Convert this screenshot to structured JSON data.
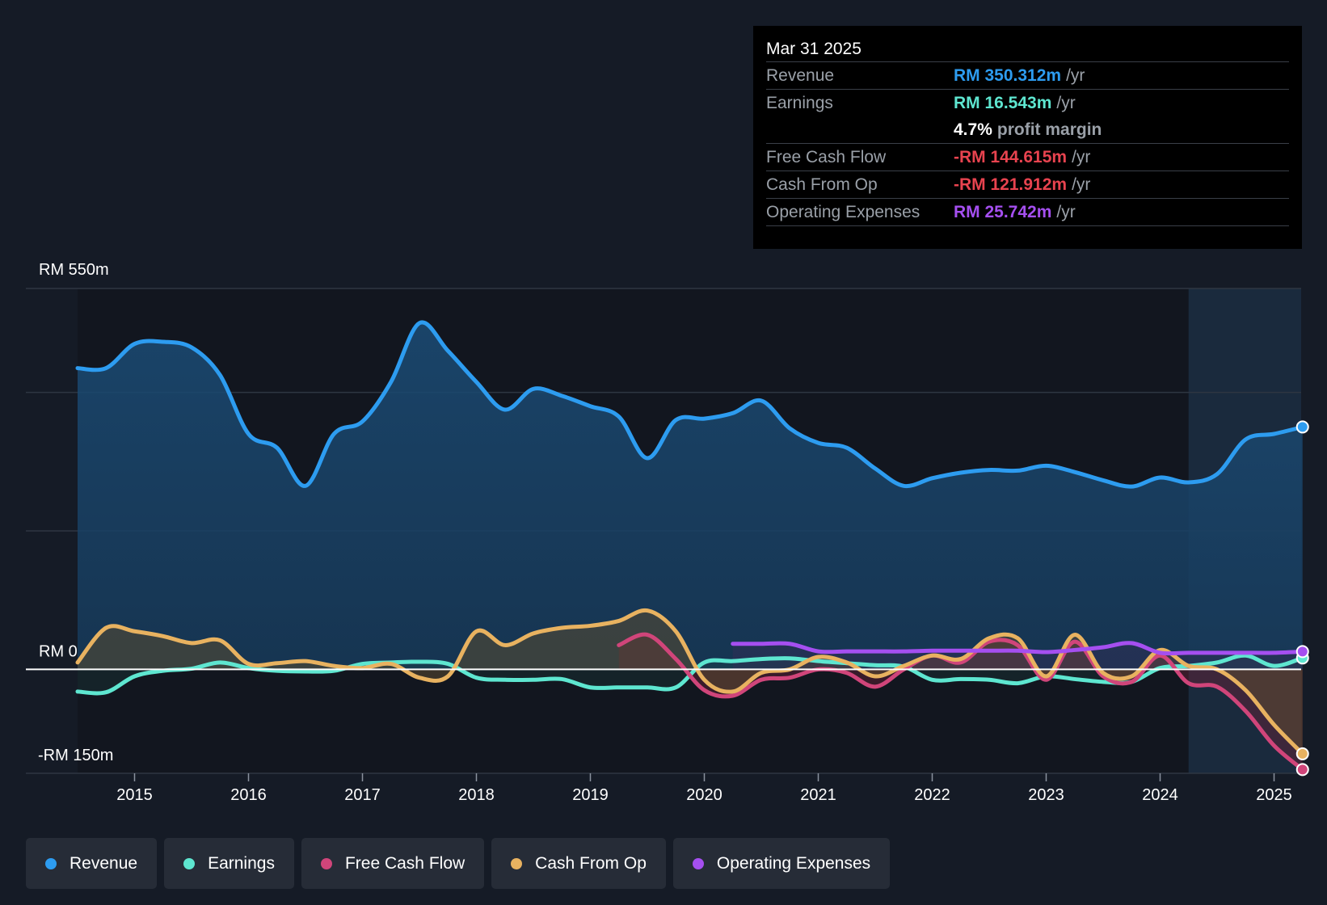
{
  "tooltip": {
    "date": "Mar 31 2025",
    "rows": [
      {
        "key": "Revenue",
        "value": "RM 350.312m",
        "unit": "/yr",
        "color": "#2d9cf0"
      },
      {
        "key": "Earnings",
        "value": "RM 16.543m",
        "unit": "/yr",
        "color": "#5ee6d0"
      },
      {
        "key": "",
        "value": "4.7%",
        "unit": "profit margin",
        "color": "#ffffff"
      },
      {
        "key": "Free Cash Flow",
        "value": "-RM 144.615m",
        "unit": "/yr",
        "color": "#e8434f"
      },
      {
        "key": "Cash From Op",
        "value": "-RM 121.912m",
        "unit": "/yr",
        "color": "#e8434f"
      },
      {
        "key": "Operating Expenses",
        "value": "RM 25.742m",
        "unit": "/yr",
        "color": "#a54ff0"
      }
    ]
  },
  "legend": [
    {
      "label": "Revenue",
      "color": "#2d9cf0"
    },
    {
      "label": "Earnings",
      "color": "#5ee6d0"
    },
    {
      "label": "Free Cash Flow",
      "color": "#d0457a"
    },
    {
      "label": "Cash From Op",
      "color": "#e8b260"
    },
    {
      "label": "Operating Expenses",
      "color": "#a54ff0"
    }
  ],
  "chart_data": {
    "type": "line",
    "y_labels": {
      "top": "RM 550m",
      "zero": "RM 0",
      "bottom": "-RM 150m"
    },
    "ylim": [
      -150,
      550
    ],
    "xlim": [
      2014.0,
      2025.25
    ],
    "x_ticks": [
      "2015",
      "2016",
      "2017",
      "2018",
      "2019",
      "2020",
      "2021",
      "2022",
      "2023",
      "2024",
      "2025"
    ],
    "grid": true,
    "forecast_start": 2024.25,
    "series": [
      {
        "name": "Revenue",
        "color": "#2d9cf0",
        "x": [
          2014.5,
          2014.75,
          2015.0,
          2015.25,
          2015.5,
          2015.75,
          2016.0,
          2016.25,
          2016.5,
          2016.75,
          2017.0,
          2017.25,
          2017.5,
          2017.75,
          2018.0,
          2018.25,
          2018.5,
          2018.75,
          2019.0,
          2019.25,
          2019.5,
          2019.75,
          2020.0,
          2020.25,
          2020.5,
          2020.75,
          2021.0,
          2021.25,
          2021.5,
          2021.75,
          2022.0,
          2022.25,
          2022.5,
          2022.75,
          2023.0,
          2023.25,
          2023.5,
          2023.75,
          2024.0,
          2024.25,
          2024.5,
          2024.75,
          2025.0,
          2025.25
        ],
        "values": [
          435,
          435,
          470,
          473,
          465,
          425,
          340,
          320,
          265,
          340,
          358,
          415,
          500,
          460,
          415,
          375,
          405,
          395,
          380,
          365,
          305,
          360,
          362,
          370,
          388,
          348,
          327,
          320,
          290,
          265,
          276,
          284,
          288,
          287,
          294,
          285,
          273,
          264,
          277,
          270,
          282,
          332,
          340,
          350
        ]
      },
      {
        "name": "Earnings",
        "color": "#5ee6d0",
        "x": [
          2014.5,
          2014.75,
          2015.0,
          2015.25,
          2015.5,
          2015.75,
          2016.0,
          2016.25,
          2016.5,
          2016.75,
          2017.0,
          2017.25,
          2017.5,
          2017.75,
          2018.0,
          2018.25,
          2018.5,
          2018.75,
          2019.0,
          2019.25,
          2019.5,
          2019.75,
          2020.0,
          2020.25,
          2020.5,
          2020.75,
          2021.0,
          2021.25,
          2021.5,
          2021.75,
          2022.0,
          2022.25,
          2022.5,
          2022.75,
          2023.0,
          2023.25,
          2023.5,
          2023.75,
          2024.0,
          2024.25,
          2024.5,
          2024.75,
          2025.0,
          2025.25
        ],
        "values": [
          -32,
          -33,
          -10,
          -2,
          1,
          10,
          2,
          -2,
          -3,
          -2,
          8,
          10,
          11,
          8,
          -12,
          -15,
          -15,
          -14,
          -26,
          -26,
          -26,
          -26,
          10,
          12,
          15,
          16,
          12,
          9,
          6,
          4,
          -15,
          -14,
          -15,
          -20,
          -10,
          -14,
          -18,
          -18,
          2,
          5,
          10,
          20,
          5,
          16.5
        ]
      },
      {
        "name": "Free Cash Flow",
        "color": "#d0457a",
        "x": [
          2019.25,
          2019.5,
          2019.75,
          2020.0,
          2020.25,
          2020.5,
          2020.75,
          2021.0,
          2021.25,
          2021.5,
          2021.75,
          2022.0,
          2022.25,
          2022.5,
          2022.75,
          2023.0,
          2023.25,
          2023.5,
          2023.75,
          2024.0,
          2024.25,
          2024.5,
          2024.75,
          2025.0,
          2025.25
        ],
        "values": [
          35,
          50,
          15,
          -30,
          -38,
          -15,
          -12,
          0,
          -5,
          -25,
          0,
          20,
          10,
          40,
          35,
          -15,
          40,
          -10,
          -18,
          20,
          -20,
          -25,
          -60,
          -110,
          -144.6
        ]
      },
      {
        "name": "Cash From Op",
        "color": "#e8b260",
        "x": [
          2014.5,
          2014.75,
          2015.0,
          2015.25,
          2015.5,
          2015.75,
          2016.0,
          2016.25,
          2016.5,
          2016.75,
          2017.0,
          2017.25,
          2017.5,
          2017.75,
          2018.0,
          2018.25,
          2018.5,
          2018.75,
          2019.0,
          2019.25,
          2019.5,
          2019.75,
          2020.0,
          2020.25,
          2020.5,
          2020.75,
          2021.0,
          2021.25,
          2021.5,
          2021.75,
          2022.0,
          2022.25,
          2022.5,
          2022.75,
          2023.0,
          2023.25,
          2023.5,
          2023.75,
          2024.0,
          2024.25,
          2024.5,
          2024.75,
          2025.0,
          2025.25
        ],
        "values": [
          10,
          60,
          55,
          48,
          38,
          42,
          8,
          9,
          12,
          5,
          2,
          8,
          -12,
          -10,
          55,
          35,
          52,
          60,
          63,
          70,
          85,
          55,
          -15,
          -32,
          -5,
          0,
          18,
          10,
          -10,
          5,
          20,
          15,
          45,
          45,
          -10,
          50,
          -5,
          -10,
          28,
          5,
          0,
          -30,
          -80,
          -121.9
        ]
      },
      {
        "name": "Operating Expenses",
        "color": "#a54ff0",
        "x": [
          2020.25,
          2020.5,
          2020.75,
          2021.0,
          2021.25,
          2021.5,
          2021.75,
          2022.0,
          2022.25,
          2022.5,
          2022.75,
          2023.0,
          2023.25,
          2023.5,
          2023.75,
          2024.0,
          2024.25,
          2024.5,
          2024.75,
          2025.0,
          2025.25
        ],
        "values": [
          37,
          37,
          37,
          26,
          26,
          26,
          26,
          27,
          27,
          27,
          27,
          25,
          28,
          32,
          38,
          24,
          24,
          24,
          24,
          24,
          25.7
        ]
      }
    ]
  }
}
